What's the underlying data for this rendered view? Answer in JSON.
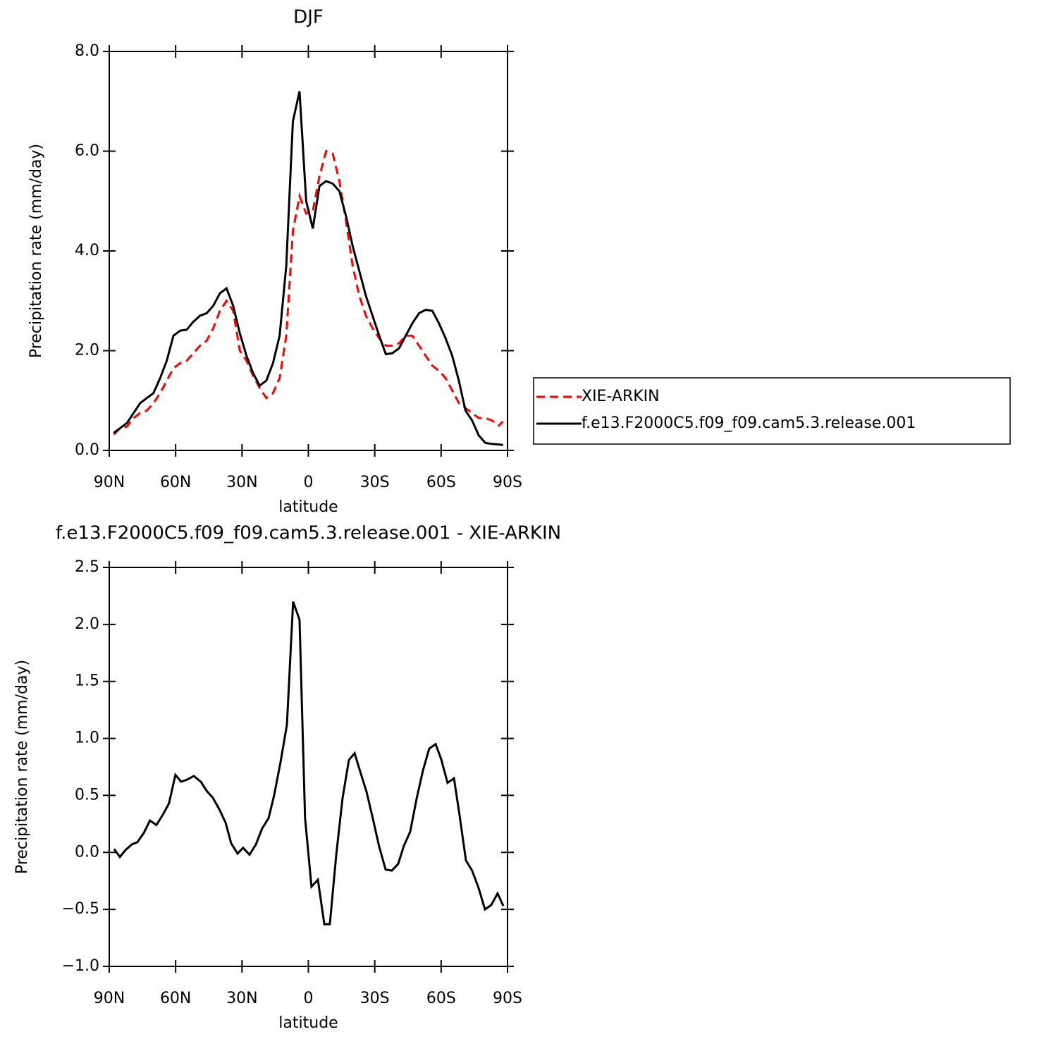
{
  "chart_data": [
    {
      "type": "line",
      "title": "DJF",
      "xlabel": "latitude",
      "ylabel": "Precipitation rate (mm/day)",
      "xlim": [
        90,
        -90
      ],
      "xticks": [
        {
          "value": 90,
          "label": "90N"
        },
        {
          "value": 60,
          "label": "60N"
        },
        {
          "value": 30,
          "label": "30N"
        },
        0,
        {
          "value": -30,
          "label": "30S"
        },
        {
          "value": -60,
          "label": "60S"
        },
        {
          "value": -90,
          "label": "90S"
        }
      ],
      "ylim": [
        0,
        8
      ],
      "yticks": [
        {
          "value": 0,
          "label": "0.0"
        },
        {
          "value": 2,
          "label": "2.0"
        },
        {
          "value": 4,
          "label": "4.0"
        },
        {
          "value": 6,
          "label": "6.0"
        },
        {
          "value": 8,
          "label": "8.0"
        }
      ],
      "x": [
        88,
        85,
        82,
        79,
        76,
        73,
        70,
        67,
        64,
        61,
        58,
        55,
        52,
        49,
        46,
        43,
        40,
        37,
        34,
        31,
        28,
        25,
        22,
        19,
        16,
        13,
        10,
        7,
        4,
        1,
        -2,
        -5,
        -8,
        -11,
        -14,
        -17,
        -20,
        -23,
        -26,
        -29,
        -32,
        -35,
        -38,
        -41,
        -44,
        -47,
        -50,
        -53,
        -56,
        -59,
        -62,
        -65,
        -68,
        -71,
        -74,
        -77,
        -80,
        -83,
        -86,
        -88
      ],
      "series": [
        {
          "name": "XIE-ARKIN",
          "color": "#ff0000",
          "line_style": "dashed",
          "values": [
            0.32,
            0.45,
            0.48,
            0.65,
            0.75,
            0.8,
            0.95,
            1.15,
            1.4,
            1.65,
            1.75,
            1.8,
            1.95,
            2.1,
            2.2,
            2.45,
            2.8,
            3.0,
            2.8,
            2.0,
            1.8,
            1.5,
            1.25,
            1.05,
            1.15,
            1.45,
            2.3,
            4.4,
            5.1,
            4.75,
            4.8,
            5.5,
            6.0,
            5.95,
            5.4,
            4.6,
            3.7,
            3.1,
            2.7,
            2.45,
            2.25,
            2.1,
            2.1,
            2.15,
            2.3,
            2.3,
            2.1,
            1.9,
            1.7,
            1.6,
            1.45,
            1.2,
            0.95,
            0.85,
            0.75,
            0.65,
            0.65,
            0.6,
            0.5,
            0.58
          ]
        },
        {
          "name": "f.e13.F2000C5.f09_f09.cam5.3.release.001",
          "color": "#000000",
          "line_style": "solid",
          "values": [
            0.35,
            0.45,
            0.55,
            0.75,
            0.95,
            1.05,
            1.15,
            1.45,
            1.8,
            2.3,
            2.4,
            2.42,
            2.58,
            2.7,
            2.75,
            2.9,
            3.15,
            3.25,
            2.9,
            2.35,
            1.9,
            1.55,
            1.3,
            1.4,
            1.75,
            2.3,
            3.7,
            6.6,
            7.2,
            5.0,
            4.45,
            5.3,
            5.4,
            5.35,
            5.2,
            4.7,
            4.1,
            3.6,
            3.1,
            2.7,
            2.3,
            1.93,
            1.95,
            2.05,
            2.3,
            2.55,
            2.75,
            2.82,
            2.8,
            2.55,
            2.25,
            1.9,
            1.4,
            0.8,
            0.6,
            0.3,
            0.15,
            0.13,
            0.12,
            0.11
          ]
        }
      ]
    },
    {
      "type": "line",
      "title": "f.e13.F2000C5.f09_f09.cam5.3.release.001 - XIE-ARKIN",
      "xlabel": "latitude",
      "ylabel": "Precipitation rate (mm/day)",
      "xlim": [
        90,
        -90
      ],
      "xticks": [
        {
          "value": 90,
          "label": "90N"
        },
        {
          "value": 60,
          "label": "60N"
        },
        {
          "value": 30,
          "label": "30N"
        },
        0,
        {
          "value": -30,
          "label": "30S"
        },
        {
          "value": -60,
          "label": "60S"
        },
        {
          "value": -90,
          "label": "90S"
        }
      ],
      "ylim": [
        -1,
        2.5
      ],
      "yticks": [
        {
          "value": -1,
          "label": "−1.0"
        },
        {
          "value": -0.5,
          "label": "−0.5"
        },
        {
          "value": 0,
          "label": "0.0"
        },
        0.5,
        {
          "value": 1,
          "label": "1.0"
        },
        1.5,
        {
          "value": 2,
          "label": "2.0"
        },
        2.5
      ],
      "color": "#000000",
      "x": [
        87.8,
        85.2,
        82.7,
        79.8,
        77.3,
        74.4,
        71.6,
        68.7,
        65.8,
        63.0,
        60.1,
        57.5,
        54.6,
        51.8,
        48.6,
        46.0,
        43.2,
        40.3,
        37.4,
        34.9,
        32.0,
        29.5,
        26.6,
        23.7,
        20.9,
        18.0,
        15.5,
        12.6,
        9.7,
        6.9,
        4.0,
        1.5,
        -1.4,
        -4.3,
        -7.2,
        -9.7,
        -12.6,
        -15.4,
        -18.3,
        -20.9,
        -23.4,
        -26.3,
        -29.1,
        -32.0,
        -34.9,
        -37.7,
        -40.6,
        -43.2,
        -46.0,
        -48.9,
        -51.8,
        -54.6,
        -57.5,
        -60.0,
        -62.9,
        -65.8,
        -68.3,
        -71.2,
        -74.0,
        -76.9,
        -79.8,
        -82.7,
        -85.5,
        -88.1
      ],
      "values": [
        0.03,
        -0.04,
        0.02,
        0.07,
        0.09,
        0.17,
        0.28,
        0.24,
        0.33,
        0.43,
        0.68,
        0.62,
        0.64,
        0.67,
        0.62,
        0.54,
        0.48,
        0.38,
        0.26,
        0.08,
        -0.01,
        0.04,
        -0.02,
        0.07,
        0.21,
        0.3,
        0.5,
        0.79,
        1.12,
        2.2,
        2.04,
        0.3,
        -0.3,
        -0.24,
        -0.63,
        -0.63,
        -0.02,
        0.47,
        0.81,
        0.87,
        0.71,
        0.53,
        0.3,
        0.05,
        -0.15,
        -0.16,
        -0.1,
        0.06,
        0.18,
        0.47,
        0.72,
        0.91,
        0.95,
        0.82,
        0.61,
        0.65,
        0.33,
        -0.07,
        -0.16,
        -0.31,
        -0.5,
        -0.46,
        -0.36,
        -0.47
      ]
    }
  ]
}
